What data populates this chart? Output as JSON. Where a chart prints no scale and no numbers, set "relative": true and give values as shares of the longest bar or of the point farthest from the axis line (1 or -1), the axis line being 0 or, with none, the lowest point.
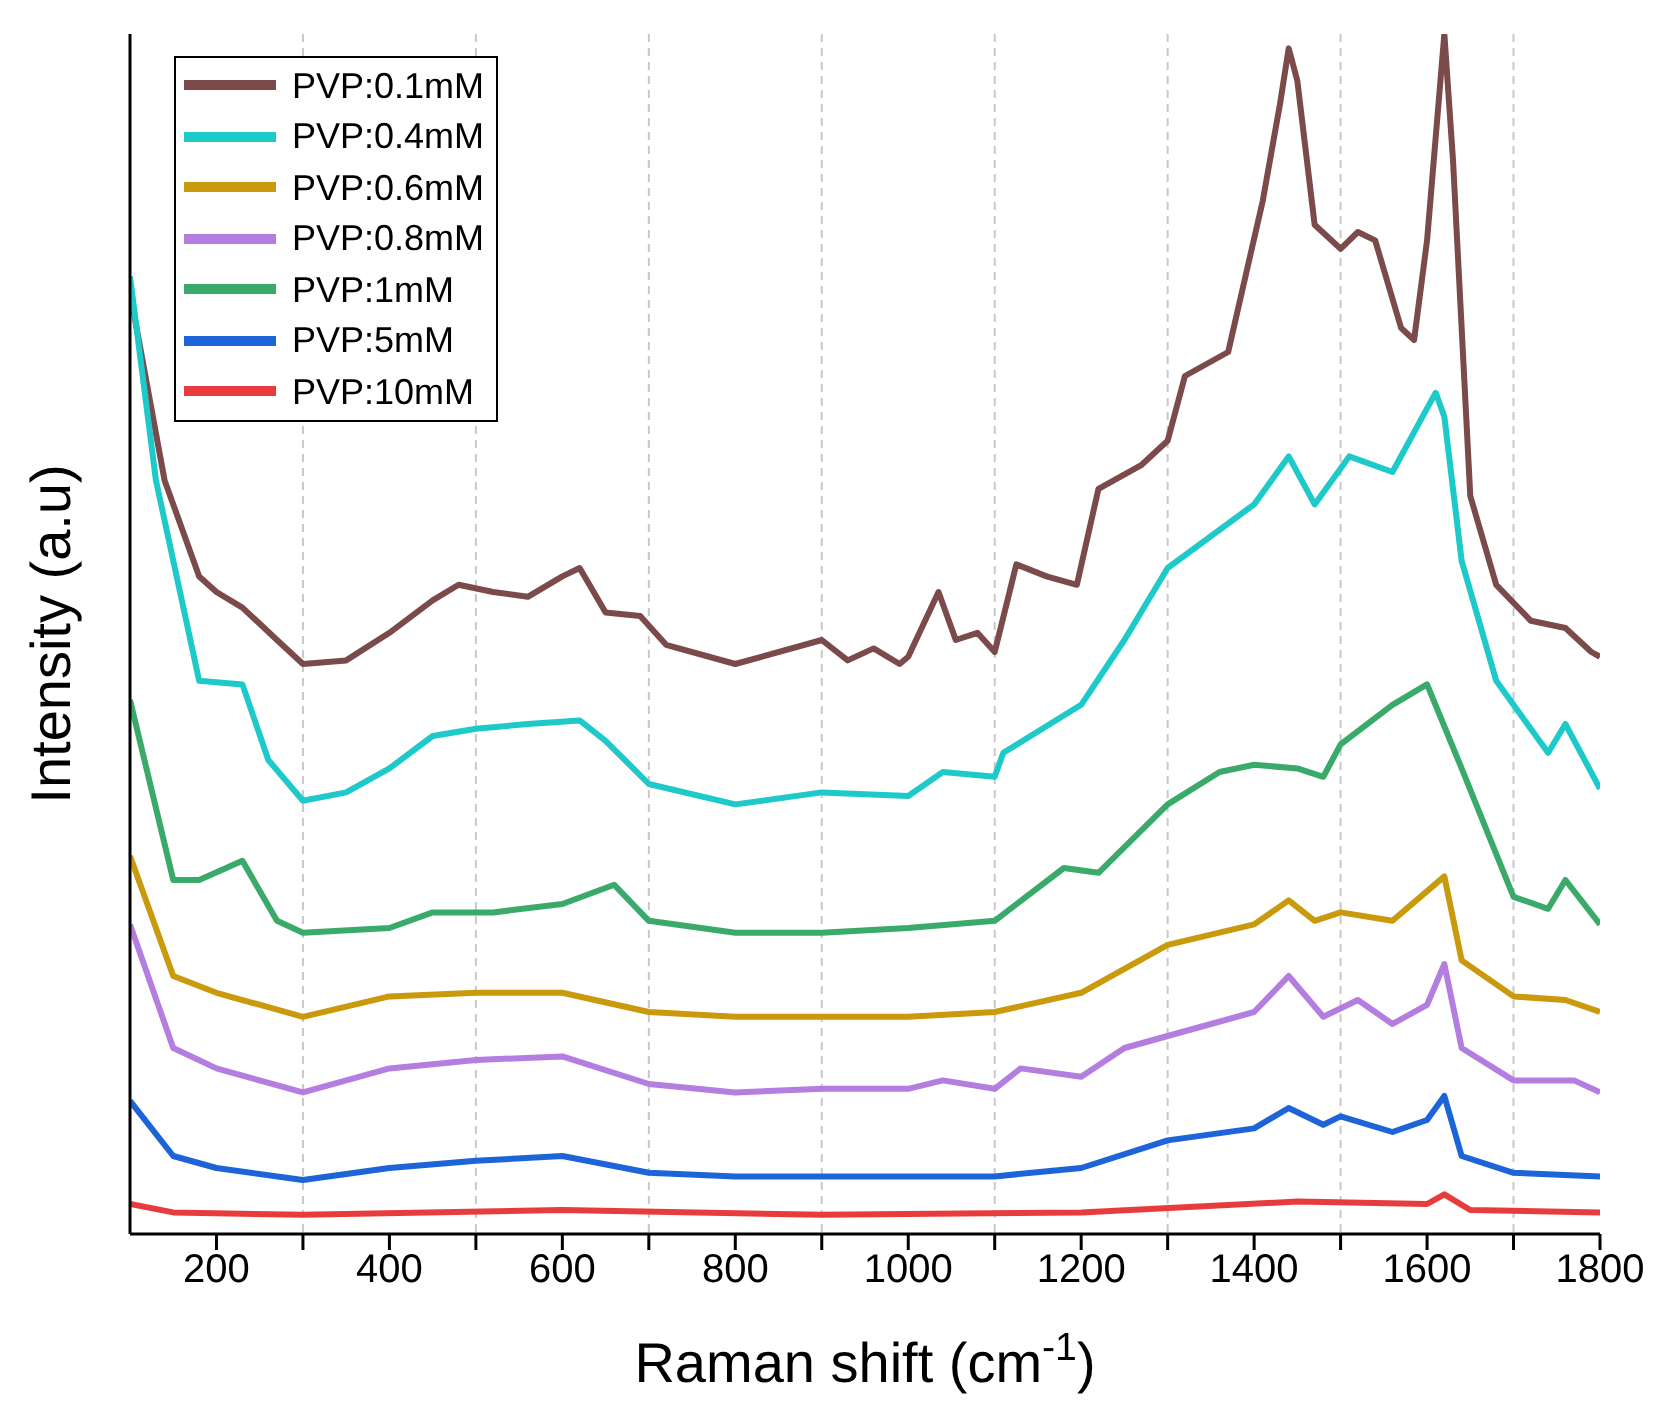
{
  "chart_data": {
    "type": "line",
    "relative": true,
    "xlabel": "Raman shift (cm$^{-1}$)",
    "ylabel": "Intensity (a.u)",
    "xlim": [
      100,
      1800
    ],
    "xticks": [
      200,
      {
        "value": 300,
        "label": null
      },
      400,
      {
        "value": 500,
        "label": null
      },
      600,
      {
        "value": 700,
        "label": null
      },
      800,
      {
        "value": 900,
        "label": null
      },
      1000,
      {
        "value": 1100,
        "label": null
      },
      1200,
      {
        "value": 1300,
        "label": null
      },
      1400,
      {
        "value": 1500,
        "label": null
      },
      1600,
      {
        "value": 1700,
        "label": null
      },
      1800
    ],
    "grid": "x",
    "legend": "top left",
    "line_style": "solid",
    "marker": "none",
    "series": [
      {
        "name": "PVP:0.1mM",
        "color": "#7b4a4a",
        "x": [
          100,
          140,
          180,
          200,
          230,
          270,
          300,
          350,
          400,
          450,
          480,
          520,
          560,
          600,
          620,
          650,
          690,
          720,
          800,
          900,
          930,
          960,
          990,
          1000,
          1035,
          1055,
          1080,
          1100,
          1125,
          1160,
          1195,
          1220,
          1270,
          1300,
          1320,
          1370,
          1390,
          1410,
          1430,
          1440,
          1450,
          1470,
          1500,
          1520,
          1540,
          1570,
          1585,
          1600,
          1620,
          1630,
          1650,
          1680,
          1720,
          1760,
          1790,
          1800
        ],
        "values": [
          0.785,
          0.628,
          0.548,
          0.535,
          0.522,
          0.495,
          0.475,
          0.478,
          0.501,
          0.528,
          0.541,
          0.535,
          0.531,
          0.548,
          0.555,
          0.518,
          0.515,
          0.491,
          0.475,
          0.495,
          0.478,
          0.488,
          0.475,
          0.481,
          0.535,
          0.495,
          0.501,
          0.485,
          0.558,
          0.548,
          0.541,
          0.621,
          0.641,
          0.661,
          0.715,
          0.735,
          0.798,
          0.861,
          0.942,
          0.988,
          0.961,
          0.841,
          0.821,
          0.835,
          0.828,
          0.755,
          0.745,
          0.828,
          1,
          0.895,
          0.615,
          0.541,
          0.511,
          0.505,
          0.485,
          0.481
        ]
      },
      {
        "name": "PVP:0.4mM",
        "color": "#1ec9c9",
        "x": [
          100,
          130,
          180,
          230,
          260,
          300,
          350,
          400,
          450,
          500,
          560,
          620,
          650,
          700,
          800,
          900,
          1000,
          1040,
          1100,
          1110,
          1200,
          1250,
          1300,
          1400,
          1440,
          1470,
          1510,
          1560,
          1600,
          1610,
          1620,
          1640,
          1680,
          1740,
          1760,
          1800
        ],
        "values": [
          0.798,
          0.628,
          0.461,
          0.458,
          0.395,
          0.361,
          0.368,
          0.388,
          0.415,
          0.421,
          0.425,
          0.428,
          0.411,
          0.375,
          0.358,
          0.368,
          0.365,
          0.385,
          0.381,
          0.401,
          0.441,
          0.495,
          0.555,
          0.608,
          0.648,
          0.608,
          0.648,
          0.635,
          0.688,
          0.701,
          0.681,
          0.561,
          0.461,
          0.401,
          0.425,
          0.371
        ]
      },
      {
        "name": "PVP:0.6mM",
        "color": "#c99a0c",
        "x": [
          100,
          150,
          200,
          300,
          400,
          500,
          600,
          700,
          800,
          900,
          1000,
          1100,
          1200,
          1300,
          1400,
          1440,
          1470,
          1500,
          1560,
          1620,
          1640,
          1700,
          1760,
          1800
        ],
        "values": [
          0.315,
          0.215,
          0.201,
          0.181,
          0.198,
          0.201,
          0.201,
          0.185,
          0.181,
          0.181,
          0.181,
          0.185,
          0.201,
          0.241,
          0.258,
          0.278,
          0.261,
          0.268,
          0.261,
          0.298,
          0.228,
          0.198,
          0.195,
          0.185
        ]
      },
      {
        "name": "PVP:0.8mM",
        "color": "#b37ee0",
        "x": [
          100,
          150,
          200,
          300,
          400,
          500,
          600,
          700,
          800,
          900,
          1000,
          1040,
          1100,
          1130,
          1200,
          1250,
          1350,
          1400,
          1440,
          1480,
          1520,
          1560,
          1600,
          1620,
          1640,
          1700,
          1770,
          1800
        ],
        "values": [
          0.258,
          0.155,
          0.138,
          0.118,
          0.138,
          0.145,
          0.148,
          0.125,
          0.118,
          0.121,
          0.121,
          0.128,
          0.121,
          0.138,
          0.131,
          0.155,
          0.175,
          0.185,
          0.215,
          0.181,
          0.195,
          0.175,
          0.191,
          0.225,
          0.155,
          0.128,
          0.128,
          0.118
        ]
      },
      {
        "name": "PVP:1mM",
        "color": "#3aaa6a",
        "x": [
          100,
          150,
          180,
          230,
          270,
          300,
          400,
          450,
          520,
          600,
          660,
          700,
          800,
          900,
          1000,
          1100,
          1180,
          1220,
          1300,
          1360,
          1400,
          1450,
          1480,
          1500,
          1560,
          1600,
          1640,
          1700,
          1740,
          1760,
          1800
        ],
        "values": [
          0.445,
          0.295,
          0.295,
          0.311,
          0.261,
          0.251,
          0.255,
          0.268,
          0.268,
          0.275,
          0.291,
          0.261,
          0.251,
          0.251,
          0.255,
          0.261,
          0.305,
          0.301,
          0.358,
          0.385,
          0.391,
          0.388,
          0.381,
          0.408,
          0.441,
          0.458,
          0.388,
          0.281,
          0.271,
          0.295,
          0.258
        ]
      },
      {
        "name": "PVP:5mM",
        "color": "#1c64d8",
        "x": [
          100,
          150,
          200,
          300,
          400,
          500,
          600,
          700,
          800,
          900,
          1000,
          1100,
          1200,
          1300,
          1400,
          1440,
          1480,
          1500,
          1560,
          1600,
          1620,
          1640,
          1700,
          1800
        ],
        "values": [
          0.111,
          0.065,
          0.055,
          0.045,
          0.055,
          0.061,
          0.065,
          0.051,
          0.048,
          0.048,
          0.048,
          0.048,
          0.055,
          0.078,
          0.088,
          0.105,
          0.091,
          0.098,
          0.085,
          0.095,
          0.115,
          0.065,
          0.051,
          0.048
        ]
      },
      {
        "name": "PVP:10mM",
        "color": "#e83c3c",
        "x": [
          100,
          150,
          300,
          600,
          900,
          1200,
          1450,
          1600,
          1620,
          1650,
          1800
        ],
        "values": [
          0.025,
          0.018,
          0.016,
          0.02,
          0.016,
          0.018,
          0.027,
          0.025,
          0.033,
          0.02,
          0.018
        ]
      }
    ]
  }
}
